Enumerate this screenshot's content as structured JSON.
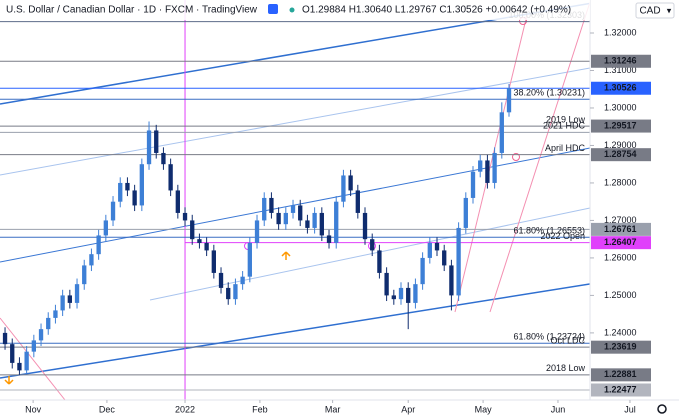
{
  "chart_data": {
    "type": "candlestick",
    "title": "U.S. Dollar / Canadian Dollar · 1D · FXCM · TradingView",
    "quote": "O1.29884 H1.30640 L1.29767 C1.30526 +0.00642 (+0.49%)",
    "currency": "CAD",
    "up_color": "#3d7fd6",
    "down_color": "#0f2c6e",
    "ylim": [
      1.2221,
      1.3288
    ],
    "yticks": [
      {
        "value": 1.32,
        "label": "1.32000"
      },
      {
        "value": 1.31,
        "label": "1.31000"
      },
      {
        "value": 1.3,
        "label": "1.30000"
      },
      {
        "value": 1.29,
        "label": "1.29000"
      },
      {
        "value": 1.28,
        "label": "1.28000"
      },
      {
        "value": 1.27,
        "label": "1.27000"
      },
      {
        "value": 1.26,
        "label": "1.26000"
      },
      {
        "value": 1.25,
        "label": "1.25000"
      },
      {
        "value": 1.24,
        "label": "1.24000"
      }
    ],
    "xlim": [
      -1.4,
      162.5
    ],
    "xticks": [
      {
        "value": 7.8,
        "label": "Nov"
      },
      {
        "value": 28.3,
        "label": "Dec"
      },
      {
        "value": 50,
        "label": "2022"
      },
      {
        "value": 70.8,
        "label": "Feb"
      },
      {
        "value": 91,
        "label": "Mar"
      },
      {
        "value": 112,
        "label": "Apr"
      },
      {
        "value": 132.8,
        "label": "May"
      },
      {
        "value": 153.6,
        "label": "Jun"
      },
      {
        "value": 173.6,
        "label": "Jul"
      }
    ],
    "year_line": 50,
    "levels": [
      {
        "value": 1.32303,
        "note": "100.00% (1.32303)",
        "color": "#5d6b8a"
      },
      {
        "value": 1.31246,
        "labeled": true,
        "color": "#787b86"
      },
      {
        "value": 1.30526,
        "labeled": true,
        "color": "#2962ff"
      },
      {
        "value": 1.30231,
        "note": "38.20% (1.30231)",
        "color": "#3a6fc4"
      },
      {
        "value": 1.29517,
        "note": "2019 Low",
        "labeled": true,
        "color": "#787b86"
      },
      {
        "value": 1.2935,
        "note": "2021 HDC",
        "color": "#9aa0ad"
      },
      {
        "value": 1.28754,
        "note": "April HDC",
        "labeled": true,
        "color": "#787b86"
      },
      {
        "value": 1.26761,
        "labeled": true,
        "color": "#9aa0ad"
      },
      {
        "value": 1.26553,
        "note": "61.80% (1.26553)",
        "color": "#3a6fc4"
      },
      {
        "value": 1.26407,
        "note": "2022 Open",
        "labeled": true,
        "color": "#e040fb"
      },
      {
        "value": 1.23724,
        "note": "61.80% (1.23724)",
        "color": "#3a6fc4"
      },
      {
        "value": 1.23619,
        "note": "Oct LDC",
        "labeled": true,
        "color": "#787b86"
      },
      {
        "value": 1.22881,
        "note": "2018 Low",
        "labeled": true,
        "color": "#787b86"
      },
      {
        "value": 1.22477,
        "labeled": true,
        "color": "#b2b5be"
      }
    ],
    "x": [
      0,
      2,
      4,
      6,
      8,
      10,
      12,
      14,
      16,
      18,
      20,
      22,
      24,
      26,
      28,
      30,
      32,
      34,
      36,
      38,
      40,
      42,
      44,
      46,
      48,
      50,
      52,
      54,
      56,
      58,
      60,
      62,
      64,
      66,
      68,
      70,
      72,
      74,
      76,
      78,
      80,
      82,
      84,
      86,
      88,
      90,
      92,
      94,
      96,
      98,
      100,
      102,
      104,
      106,
      108,
      110,
      112,
      114,
      116,
      118,
      120,
      122,
      124,
      126,
      128,
      130,
      132,
      134,
      136,
      138,
      140
    ],
    "ohlc": [
      [
        1.24,
        1.2415,
        1.2355,
        1.237
      ],
      [
        1.237,
        1.2385,
        1.2305,
        1.232
      ],
      [
        1.232,
        1.2335,
        1.2288,
        1.23
      ],
      [
        1.23,
        1.2365,
        1.229,
        1.235
      ],
      [
        1.235,
        1.2395,
        1.2335,
        1.238
      ],
      [
        1.238,
        1.2425,
        1.2365,
        1.241
      ],
      [
        1.241,
        1.2455,
        1.2395,
        1.244
      ],
      [
        1.244,
        1.2475,
        1.2425,
        1.246
      ],
      [
        1.246,
        1.2515,
        1.2445,
        1.25
      ],
      [
        1.25,
        1.2515,
        1.2465,
        1.248
      ],
      [
        1.248,
        1.2545,
        1.2465,
        1.253
      ],
      [
        1.253,
        1.2595,
        1.2515,
        1.258
      ],
      [
        1.258,
        1.2625,
        1.2565,
        1.261
      ],
      [
        1.261,
        1.2675,
        1.2595,
        1.266
      ],
      [
        1.266,
        1.2715,
        1.2645,
        1.27
      ],
      [
        1.27,
        1.2765,
        1.2685,
        1.275
      ],
      [
        1.275,
        1.2815,
        1.2735,
        1.28
      ],
      [
        1.28,
        1.2815,
        1.2765,
        1.278
      ],
      [
        1.278,
        1.2795,
        1.2725,
        1.274
      ],
      [
        1.274,
        1.2865,
        1.2725,
        1.285
      ],
      [
        1.285,
        1.2964,
        1.2835,
        1.294
      ],
      [
        1.294,
        1.2955,
        1.2865,
        1.288
      ],
      [
        1.288,
        1.2895,
        1.2835,
        1.285
      ],
      [
        1.285,
        1.2865,
        1.2765,
        1.278
      ],
      [
        1.278,
        1.2795,
        1.2705,
        1.272
      ],
      [
        1.272,
        1.2735,
        1.2685,
        1.27
      ],
      [
        1.27,
        1.2715,
        1.2635,
        1.265
      ],
      [
        1.265,
        1.2665,
        1.2625,
        1.264
      ],
      [
        1.264,
        1.2655,
        1.2605,
        1.262
      ],
      [
        1.262,
        1.2635,
        1.2545,
        1.256
      ],
      [
        1.256,
        1.2575,
        1.2505,
        1.252
      ],
      [
        1.252,
        1.2535,
        1.2475,
        1.249
      ],
      [
        1.249,
        1.2545,
        1.2475,
        1.253
      ],
      [
        1.253,
        1.2565,
        1.2515,
        1.255
      ],
      [
        1.255,
        1.2655,
        1.2535,
        1.264
      ],
      [
        1.264,
        1.2715,
        1.2625,
        1.27
      ],
      [
        1.27,
        1.2775,
        1.2685,
        1.276
      ],
      [
        1.276,
        1.2775,
        1.2705,
        1.272
      ],
      [
        1.272,
        1.2735,
        1.2675,
        1.269
      ],
      [
        1.269,
        1.2735,
        1.2675,
        1.272
      ],
      [
        1.272,
        1.2755,
        1.2705,
        1.274
      ],
      [
        1.274,
        1.2755,
        1.2685,
        1.27
      ],
      [
        1.27,
        1.2715,
        1.2665,
        1.268
      ],
      [
        1.268,
        1.2735,
        1.2665,
        1.272
      ],
      [
        1.272,
        1.2735,
        1.2645,
        1.266
      ],
      [
        1.266,
        1.2675,
        1.2625,
        1.264
      ],
      [
        1.264,
        1.2765,
        1.2625,
        1.275
      ],
      [
        1.275,
        1.2835,
        1.2735,
        1.282
      ],
      [
        1.282,
        1.2835,
        1.2765,
        1.278
      ],
      [
        1.278,
        1.2795,
        1.2705,
        1.272
      ],
      [
        1.272,
        1.2735,
        1.2635,
        1.265
      ],
      [
        1.265,
        1.2665,
        1.2605,
        1.262
      ],
      [
        1.262,
        1.2635,
        1.2545,
        1.256
      ],
      [
        1.256,
        1.2575,
        1.2485,
        1.25
      ],
      [
        1.25,
        1.2515,
        1.2475,
        1.249
      ],
      [
        1.249,
        1.2535,
        1.2475,
        1.252
      ],
      [
        1.252,
        1.2535,
        1.241,
        1.248
      ],
      [
        1.248,
        1.2545,
        1.2465,
        1.253
      ],
      [
        1.253,
        1.2615,
        1.2515,
        1.26
      ],
      [
        1.26,
        1.2655,
        1.2585,
        1.264
      ],
      [
        1.264,
        1.2655,
        1.2605,
        1.262
      ],
      [
        1.262,
        1.2635,
        1.2565,
        1.258
      ],
      [
        1.258,
        1.2595,
        1.246,
        1.25
      ],
      [
        1.25,
        1.2695,
        1.2485,
        1.268
      ],
      [
        1.268,
        1.2775,
        1.2665,
        1.276
      ],
      [
        1.276,
        1.2845,
        1.2745,
        1.283
      ],
      [
        1.283,
        1.2875,
        1.2815,
        1.286
      ],
      [
        1.286,
        1.2875,
        1.2785,
        1.28
      ],
      [
        1.28,
        1.2895,
        1.2785,
        1.288
      ],
      [
        1.288,
        1.3015,
        1.2865,
        1.29884
      ],
      [
        1.29884,
        1.3064,
        1.29767,
        1.30526
      ]
    ]
  }
}
